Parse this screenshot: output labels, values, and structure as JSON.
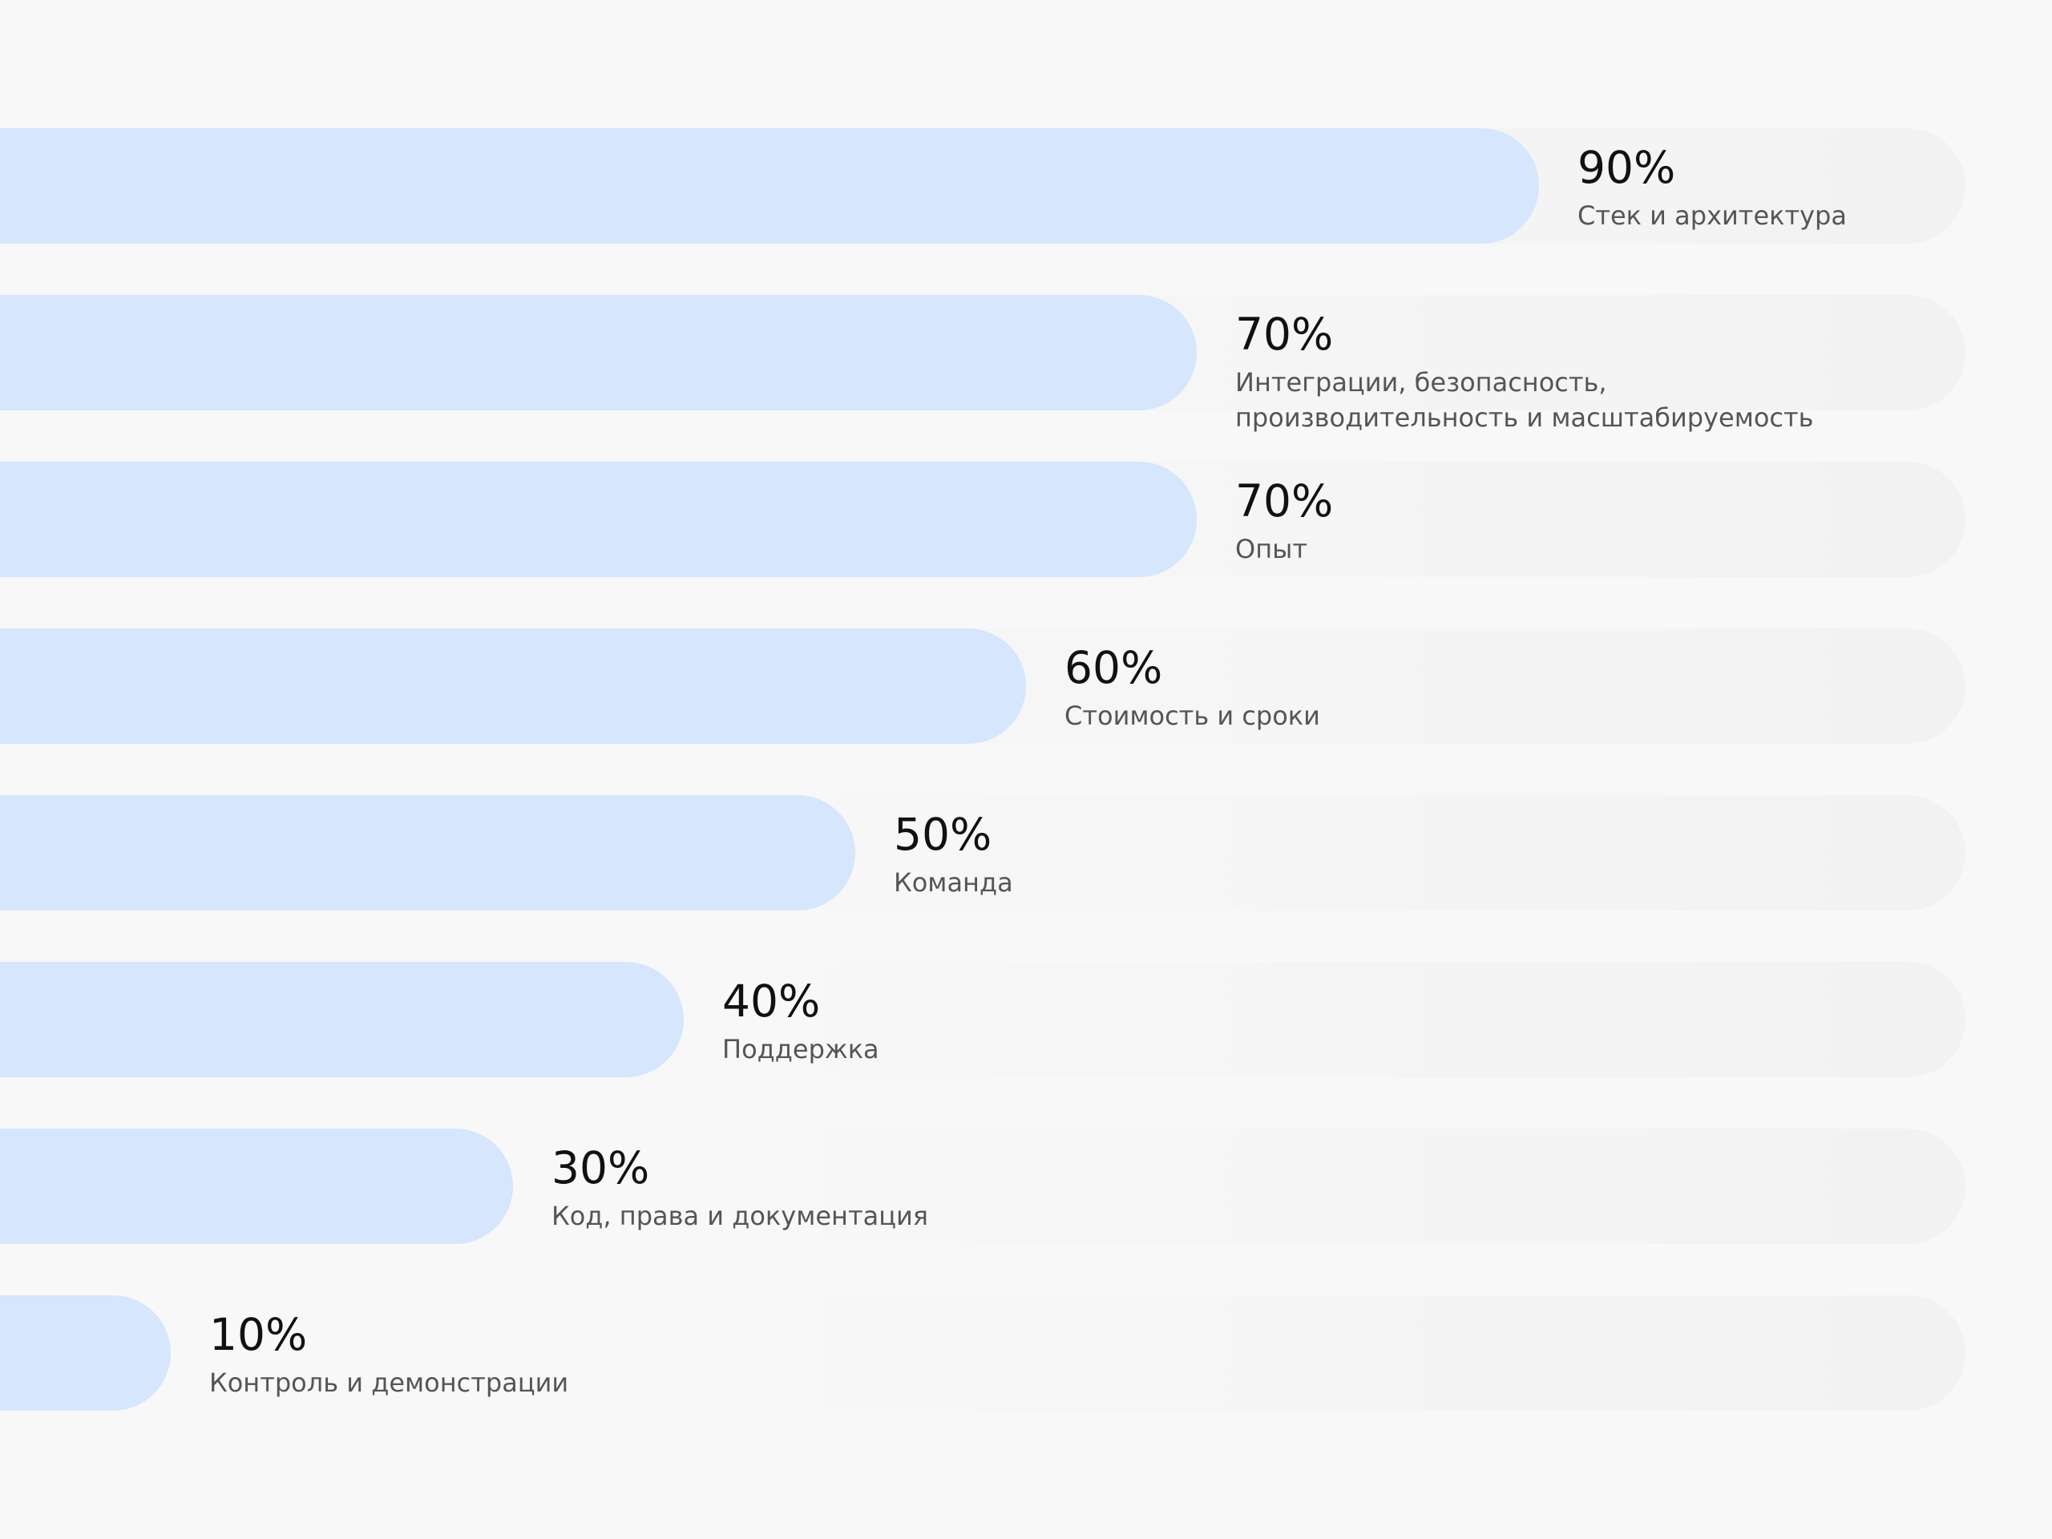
{
  "chart_data": {
    "type": "bar",
    "orientation": "horizontal",
    "value_max": 100,
    "categories": [
      "Стек и архитектура",
      "Интеграции, безопасность,\nпроизводительность и масштабируемость",
      "Опыт",
      "Стоимость и сроки",
      "Команда",
      "Поддержка",
      "Код, права и документация",
      "Контроль и демонстрации"
    ],
    "values": [
      90,
      70,
      70,
      60,
      50,
      40,
      30,
      10
    ],
    "value_labels": [
      "90%",
      "70%",
      "70%",
      "60%",
      "50%",
      "40%",
      "30%",
      "10%"
    ],
    "colors": {
      "bar_fill": "#d6e6fc",
      "track": "#f2f2f2",
      "value_text": "#111111",
      "category_text": "#555555",
      "background": "#f8f8f8"
    },
    "grid": false,
    "legend": "none"
  }
}
